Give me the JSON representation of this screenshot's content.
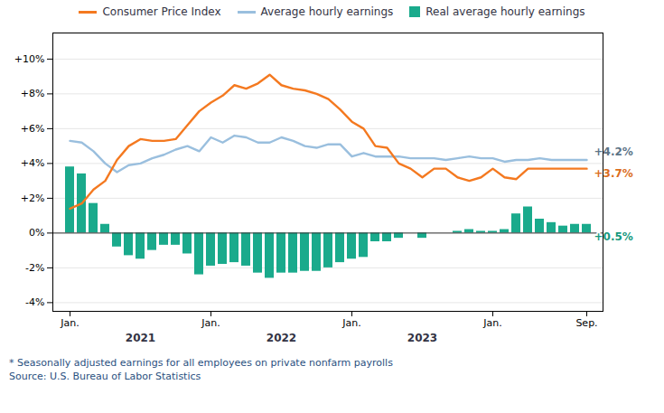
{
  "chart_data": {
    "type": "bar",
    "categories": [
      "Jan.",
      null,
      null,
      null,
      null,
      null,
      null,
      null,
      null,
      null,
      null,
      null,
      "Jan.",
      null,
      null,
      null,
      null,
      null,
      null,
      null,
      null,
      null,
      null,
      null,
      "Jan.",
      null,
      null,
      null,
      null,
      null,
      null,
      null,
      null,
      null,
      null,
      null,
      "Jan.",
      null,
      null,
      null,
      null,
      null,
      null,
      null,
      "Sep."
    ],
    "series": [
      {
        "name": "Consumer Price Index",
        "type": "line",
        "color": "#f47920",
        "values": [
          1.4,
          1.7,
          2.5,
          3.0,
          4.2,
          5.0,
          5.4,
          5.3,
          5.3,
          5.4,
          6.2,
          7.0,
          7.5,
          7.9,
          8.5,
          8.3,
          8.6,
          9.1,
          8.5,
          8.3,
          8.2,
          8.0,
          7.7,
          7.1,
          6.4,
          6.0,
          5.0,
          4.9,
          4.0,
          3.7,
          3.2,
          3.7,
          3.7,
          3.2,
          3.0,
          3.2,
          3.7,
          3.2,
          3.1,
          3.7,
          3.7,
          3.7,
          3.7,
          3.7,
          3.7
        ]
      },
      {
        "name": "Average hourly earnings",
        "type": "line",
        "color": "#9abfde",
        "values": [
          5.3,
          5.2,
          4.7,
          4.0,
          3.5,
          3.9,
          4.0,
          4.3,
          4.5,
          4.8,
          5.0,
          4.7,
          5.5,
          5.2,
          5.6,
          5.5,
          5.2,
          5.2,
          5.5,
          5.3,
          5.0,
          4.9,
          5.1,
          5.1,
          4.4,
          4.6,
          4.4,
          4.4,
          4.4,
          4.3,
          4.3,
          4.3,
          4.2,
          4.3,
          4.4,
          4.3,
          4.3,
          4.1,
          4.2,
          4.2,
          4.3,
          4.2,
          4.2,
          4.2,
          4.2
        ]
      },
      {
        "name": "Real average hourly earnings",
        "type": "bar",
        "color": "#1aaa8c",
        "values": [
          3.8,
          3.4,
          1.7,
          0.5,
          -0.8,
          -1.3,
          -1.5,
          -1.0,
          -0.7,
          -0.7,
          -1.2,
          -2.4,
          -1.9,
          -1.8,
          -1.7,
          -1.9,
          -2.3,
          -2.6,
          -2.3,
          -2.3,
          -2.2,
          -2.2,
          -2.0,
          -1.7,
          -1.5,
          -1.4,
          -0.5,
          -0.5,
          -0.3,
          0.0,
          -0.3,
          0.0,
          0.0,
          0.1,
          0.2,
          0.1,
          0.1,
          0.2,
          1.1,
          1.5,
          0.8,
          0.6,
          0.4,
          0.5,
          0.5
        ]
      }
    ],
    "ylim": [
      -4.5,
      11.5
    ],
    "yticks": [
      {
        "value": -4,
        "label": "-4%"
      },
      {
        "value": -2,
        "label": "-2%"
      },
      {
        "value": 0,
        "label": "0%"
      },
      {
        "value": 2,
        "label": "+2%"
      },
      {
        "value": 4,
        "label": "+4%"
      },
      {
        "value": 6,
        "label": "+6%"
      },
      {
        "value": 8,
        "label": "+8%"
      },
      {
        "value": 10,
        "label": "+10%"
      }
    ],
    "grid": true,
    "legend": "top",
    "annotations": [
      {
        "text": "2021",
        "x": 6
      },
      {
        "text": "2022",
        "x": 18
      },
      {
        "text": "2023",
        "x": 30
      },
      {
        "text": "+4.2%",
        "series": "Average hourly earnings"
      },
      {
        "text": "+3.7%",
        "series": "Consumer Price Index"
      },
      {
        "text": "+0.5%",
        "series": "Real average hourly earnings"
      }
    ],
    "footnotes": [
      "* Seasonally adjusted earnings for all employees on private nonfarm payrolls",
      "Source: U.S. Bureau of Labor Statistics"
    ]
  }
}
